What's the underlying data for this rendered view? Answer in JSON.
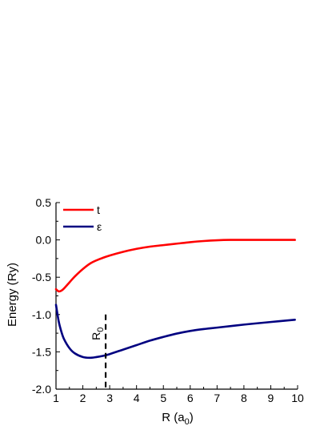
{
  "chart_data": {
    "type": "line",
    "xlabel_main": "R (a",
    "xlabel_sub": "0",
    "xlabel_end": ")",
    "ylabel": "Energy (Ry)",
    "xlim": [
      1,
      10
    ],
    "ylim": [
      -2.0,
      0.5
    ],
    "xticks": [
      "1",
      "2",
      "3",
      "4",
      "5",
      "6",
      "7",
      "8",
      "9",
      "10"
    ],
    "yticks": [
      "0.5",
      "0.0",
      "-0.5",
      "-1.0",
      "-1.5",
      "-2.0"
    ],
    "grid": false,
    "legend_position": "top-left",
    "series": [
      {
        "name": "t",
        "color": "#ff0000",
        "x": [
          1.0,
          1.1,
          1.2,
          1.3,
          1.5,
          1.7,
          2.0,
          2.3,
          2.6,
          3.0,
          3.5,
          4.0,
          4.5,
          5.0,
          5.5,
          6.0,
          6.5,
          7.0,
          7.5,
          8.0,
          9.0,
          9.9
        ],
        "y": [
          -0.66,
          -0.69,
          -0.68,
          -0.65,
          -0.57,
          -0.49,
          -0.39,
          -0.31,
          -0.26,
          -0.21,
          -0.16,
          -0.12,
          -0.09,
          -0.07,
          -0.05,
          -0.03,
          -0.015,
          -0.005,
          0.0,
          0.0,
          0.0,
          0.0
        ]
      },
      {
        "name": "ε",
        "color": "#000080",
        "x": [
          1.0,
          1.1,
          1.2,
          1.3,
          1.5,
          1.7,
          2.0,
          2.25,
          2.5,
          2.8,
          3.0,
          3.5,
          4.0,
          4.5,
          5.0,
          5.5,
          6.0,
          6.5,
          7.0,
          8.0,
          9.0,
          9.9
        ],
        "y": [
          -0.87,
          -1.09,
          -1.23,
          -1.33,
          -1.45,
          -1.52,
          -1.57,
          -1.58,
          -1.57,
          -1.55,
          -1.53,
          -1.47,
          -1.41,
          -1.35,
          -1.3,
          -1.255,
          -1.22,
          -1.195,
          -1.175,
          -1.135,
          -1.1,
          -1.07
        ]
      }
    ],
    "annotation": {
      "label": "R",
      "label_sub": "0",
      "x": 2.85,
      "y_top": -1.0,
      "y_bottom": -2.0,
      "style": "dashed"
    }
  }
}
